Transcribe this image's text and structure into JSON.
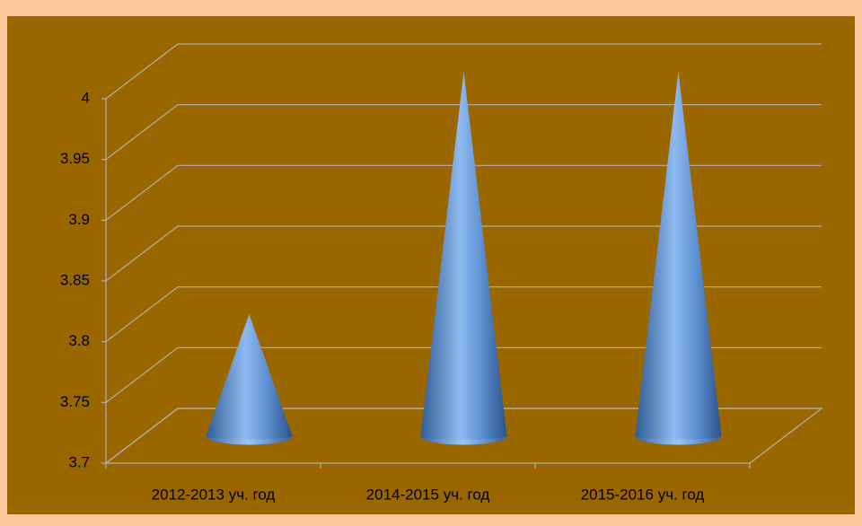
{
  "chart_data": {
    "type": "cone",
    "categories": [
      "2012-2013 уч. год",
      "2014-2015 уч. год",
      "2015-2016 уч. год"
    ],
    "values": [
      3.8,
      4,
      4
    ],
    "color": "#4f81bd",
    "ylim": [
      3.7,
      4
    ],
    "yticks": [
      3.7,
      3.75,
      3.8,
      3.85,
      3.9,
      3.95,
      4
    ],
    "grid": true
  }
}
